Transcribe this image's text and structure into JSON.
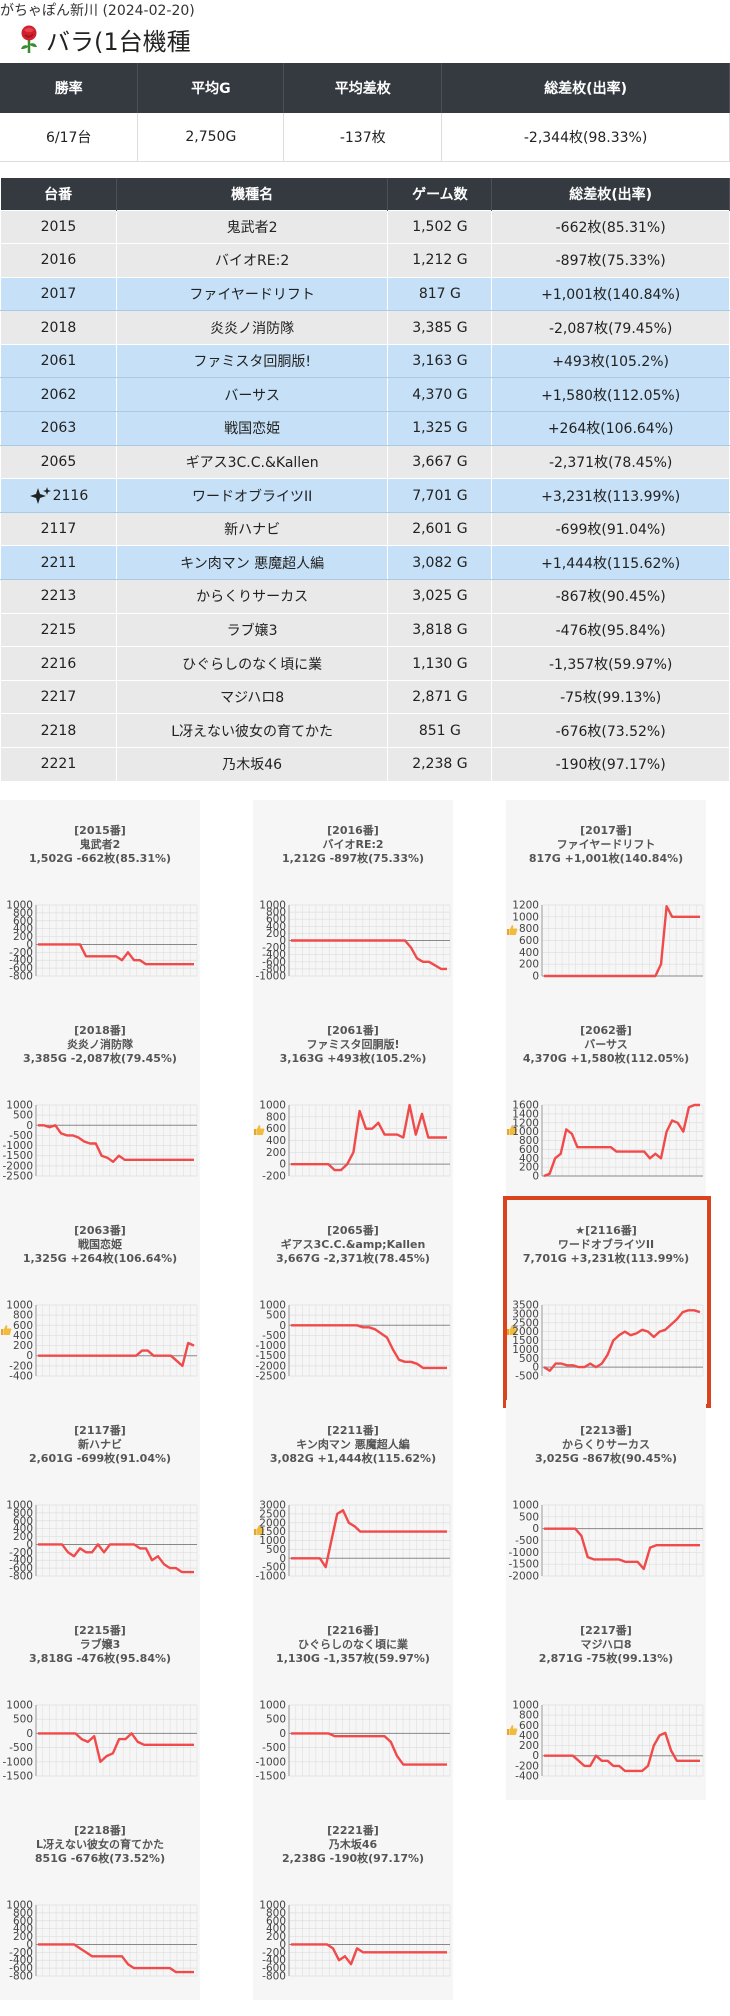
{
  "header": {
    "breadcrumb": "がちゃぽん新川 (2024-02-20)",
    "title": "バラ(1台機種"
  },
  "summary": {
    "headers": [
      "勝率",
      "平均G",
      "平均差枚",
      "総差枚(出率)"
    ],
    "values": [
      "6/17台",
      "2,750G",
      "-137枚",
      "-2,344枚(98.33%)"
    ]
  },
  "table": {
    "headers": [
      "台番",
      "機種名",
      "ゲーム数",
      "総差枚(出率)"
    ],
    "rows": [
      {
        "no": "2015",
        "name": "鬼武者2",
        "games": "1,502 G",
        "diff": "-662枚(85.31%)",
        "win": false
      },
      {
        "no": "2016",
        "name": "バイオRE:2",
        "games": "1,212 G",
        "diff": "-897枚(75.33%)",
        "win": false
      },
      {
        "no": "2017",
        "name": "ファイヤードリフト",
        "games": "817 G",
        "diff": "+1,001枚(140.84%)",
        "win": true
      },
      {
        "no": "2018",
        "name": "炎炎ノ消防隊",
        "games": "3,385 G",
        "diff": "-2,087枚(79.45%)",
        "win": false
      },
      {
        "no": "2061",
        "name": "ファミスタ回胴版!",
        "games": "3,163 G",
        "diff": "+493枚(105.2%)",
        "win": true
      },
      {
        "no": "2062",
        "name": "バーサス",
        "games": "4,370 G",
        "diff": "+1,580枚(112.05%)",
        "win": true
      },
      {
        "no": "2063",
        "name": "戦国恋姫",
        "games": "1,325 G",
        "diff": "+264枚(106.64%)",
        "win": true
      },
      {
        "no": "2065",
        "name": "ギアス3C.C.&Kallen",
        "games": "3,667 G",
        "diff": "-2,371枚(78.45%)",
        "win": false
      },
      {
        "no": "2116",
        "name": "ワードオブライツII",
        "games": "7,701 G",
        "diff": "+3,231枚(113.99%)",
        "win": true,
        "star": true
      },
      {
        "no": "2117",
        "name": "新ハナビ",
        "games": "2,601 G",
        "diff": "-699枚(91.04%)",
        "win": false
      },
      {
        "no": "2211",
        "name": "キン肉マン 悪魔超人編",
        "games": "3,082 G",
        "diff": "+1,444枚(115.62%)",
        "win": true
      },
      {
        "no": "2213",
        "name": "からくりサーカス",
        "games": "3,025 G",
        "diff": "-867枚(90.45%)",
        "win": false
      },
      {
        "no": "2215",
        "name": "ラブ嬢3",
        "games": "3,818 G",
        "diff": "-476枚(95.84%)",
        "win": false
      },
      {
        "no": "2216",
        "name": "ひぐらしのなく頃に業",
        "games": "1,130 G",
        "diff": "-1,357枚(59.97%)",
        "win": false
      },
      {
        "no": "2217",
        "name": "マジハロ8",
        "games": "2,871 G",
        "diff": "-75枚(99.13%)",
        "win": false
      },
      {
        "no": "2218",
        "name": "L冴えない彼女の育てかた",
        "games": "851 G",
        "diff": "-676枚(73.52%)",
        "win": false
      },
      {
        "no": "2221",
        "name": "乃木坂46",
        "games": "2,238 G",
        "diff": "-190枚(97.17%)",
        "win": false
      }
    ]
  },
  "charts": [
    {
      "label": "[2015番]",
      "name": "鬼武者2",
      "stats": "1,502G -662枚(85.31%)",
      "thumb": false,
      "ticks": [
        1000,
        800,
        600,
        400,
        200,
        0,
        -200,
        -400,
        -600,
        -800
      ],
      "ymin": -800,
      "ymax": 1000,
      "values": [
        0,
        0,
        0,
        0,
        0,
        0,
        0,
        0,
        -300,
        -300,
        -300,
        -300,
        -300,
        -300,
        -400,
        -200,
        -400,
        -400,
        -500,
        -500,
        -500,
        -500,
        -500,
        -500,
        -500,
        -500,
        -500
      ]
    },
    {
      "label": "[2016番]",
      "name": "バイオRE:2",
      "stats": "1,212G -897枚(75.33%)",
      "thumb": false,
      "ticks": [
        1000,
        800,
        600,
        400,
        200,
        0,
        -200,
        -400,
        -600,
        -800,
        -1000
      ],
      "ymin": -1000,
      "ymax": 1000,
      "values": [
        0,
        0,
        0,
        0,
        0,
        0,
        0,
        0,
        0,
        0,
        0,
        0,
        0,
        0,
        0,
        0,
        0,
        0,
        0,
        0,
        -200,
        -500,
        -600,
        -600,
        -700,
        -800,
        -800
      ]
    },
    {
      "label": "[2017番]",
      "name": "ファイヤードリフト",
      "stats": "817G +1,001枚(140.84%)",
      "thumb": true,
      "ticks": [
        1200,
        1000,
        800,
        600,
        400,
        200,
        0
      ],
      "ymin": 0,
      "ymax": 1200,
      "values": [
        0,
        0,
        0,
        0,
        0,
        0,
        0,
        0,
        0,
        0,
        0,
        0,
        0,
        0,
        0,
        0,
        0,
        0,
        0,
        0,
        0,
        200,
        1180,
        1000,
        1000,
        1000,
        1000,
        1000,
        1000
      ]
    },
    {
      "label": "[2018番]",
      "name": "炎炎ノ消防隊",
      "stats": "3,385G -2,087枚(79.45%)",
      "thumb": false,
      "ticks": [
        1000,
        500,
        0,
        -500,
        -1000,
        -1500,
        -2000,
        -2500
      ],
      "ymin": -2500,
      "ymax": 1000,
      "values": [
        0,
        0,
        -100,
        0,
        -400,
        -500,
        -500,
        -600,
        -800,
        -900,
        -900,
        -1500,
        -1600,
        -1800,
        -1500,
        -1700,
        -1700,
        -1700,
        -1700,
        -1700,
        -1700,
        -1700,
        -1700,
        -1700,
        -1700,
        -1700,
        -1700,
        -1700
      ]
    },
    {
      "label": "[2061番]",
      "name": "ファミスタ回胴版!",
      "stats": "3,163G +493枚(105.2%)",
      "thumb": true,
      "ticks": [
        1000,
        800,
        600,
        400,
        200,
        0,
        -200
      ],
      "ymin": -200,
      "ymax": 1000,
      "values": [
        0,
        0,
        0,
        0,
        0,
        0,
        0,
        -100,
        -100,
        0,
        200,
        900,
        600,
        600,
        700,
        500,
        500,
        500,
        450,
        1000,
        500,
        850,
        450,
        450,
        450,
        450
      ]
    },
    {
      "label": "[2062番]",
      "name": "バーサス",
      "stats": "4,370G +1,580枚(112.05%)",
      "thumb": true,
      "ticks": [
        1600,
        1400,
        1200,
        1000,
        800,
        600,
        400,
        200,
        0
      ],
      "ymin": 0,
      "ymax": 1600,
      "values": [
        0,
        50,
        400,
        500,
        1050,
        950,
        650,
        650,
        650,
        650,
        650,
        650,
        650,
        550,
        550,
        550,
        550,
        550,
        550,
        400,
        500,
        400,
        1000,
        1250,
        1200,
        1000,
        1550,
        1600,
        1600
      ]
    },
    {
      "label": "[2063番]",
      "name": "戦国恋姫",
      "stats": "1,325G +264枚(106.64%)",
      "thumb": true,
      "ticks": [
        1000,
        800,
        600,
        400,
        200,
        0,
        -200,
        -400
      ],
      "ymin": -400,
      "ymax": 1000,
      "values": [
        0,
        0,
        0,
        0,
        0,
        0,
        0,
        0,
        0,
        0,
        0,
        0,
        0,
        0,
        0,
        0,
        0,
        0,
        100,
        100,
        0,
        0,
        0,
        0,
        -100,
        -200,
        250,
        200
      ]
    },
    {
      "label": "[2065番]",
      "name": "ギアス3C.C.&amp;Kallen",
      "stats": "3,667G -2,371枚(78.45%)",
      "thumb": false,
      "ticks": [
        1000,
        500,
        0,
        -500,
        -1000,
        -1500,
        -2000,
        -2500
      ],
      "ymin": -2500,
      "ymax": 1000,
      "values": [
        0,
        0,
        0,
        0,
        0,
        0,
        0,
        0,
        0,
        0,
        0,
        0,
        -100,
        -100,
        -200,
        -400,
        -600,
        -1200,
        -1700,
        -1800,
        -1800,
        -1900,
        -2100,
        -2100,
        -2100,
        -2100,
        -2100
      ]
    },
    {
      "label": "★[2116番]",
      "name": "ワードオブライツII",
      "stats": "7,701G +3,231枚(113.99%)",
      "thumb": true,
      "ticks": [
        3500,
        3000,
        2500,
        2000,
        1500,
        1000,
        500,
        0,
        -500
      ],
      "ymin": -500,
      "ymax": 3500,
      "values": [
        0,
        -200,
        200,
        200,
        100,
        100,
        0,
        0,
        200,
        0,
        200,
        700,
        1500,
        1800,
        2000,
        1800,
        1900,
        2100,
        2000,
        1700,
        2000,
        2100,
        2400,
        2700,
        3100,
        3200,
        3200,
        3100
      ]
    },
    {
      "label": "[2117番]",
      "name": "新ハナビ",
      "stats": "2,601G -699枚(91.04%)",
      "thumb": false,
      "ticks": [
        1000,
        800,
        600,
        400,
        200,
        0,
        -200,
        -400,
        -600,
        -800
      ],
      "ymin": -800,
      "ymax": 1000,
      "values": [
        0,
        0,
        0,
        0,
        0,
        -200,
        -300,
        -100,
        -200,
        -200,
        0,
        -200,
        0,
        0,
        0,
        0,
        0,
        -100,
        -100,
        -400,
        -300,
        -500,
        -600,
        -600,
        -700,
        -700,
        -700
      ]
    },
    {
      "label": "[2211番]",
      "name": "キン肉マン 悪魔超人編",
      "stats": "3,082G +1,444枚(115.62%)",
      "thumb": true,
      "ticks": [
        3000,
        2500,
        2000,
        1500,
        1000,
        500,
        0,
        -500,
        -1000
      ],
      "ymin": -1000,
      "ymax": 3000,
      "values": [
        0,
        0,
        0,
        0,
        0,
        0,
        -500,
        1000,
        2500,
        2700,
        2000,
        1800,
        1500,
        1500,
        1500,
        1500,
        1500,
        1500,
        1500,
        1500,
        1500,
        1500,
        1500,
        1500,
        1500,
        1500,
        1500,
        1500
      ]
    },
    {
      "label": "[2213番]",
      "name": "からくりサーカス",
      "stats": "3,025G -867枚(90.45%)",
      "thumb": false,
      "ticks": [
        1000,
        500,
        0,
        -500,
        -1000,
        -1500,
        -2000
      ],
      "ymin": -2000,
      "ymax": 1000,
      "values": [
        0,
        0,
        0,
        0,
        0,
        0,
        -300,
        -1200,
        -1300,
        -1300,
        -1300,
        -1300,
        -1300,
        -1400,
        -1400,
        -1400,
        -1700,
        -800,
        -700,
        -700,
        -700,
        -700,
        -700,
        -700,
        -700,
        -700
      ]
    },
    {
      "label": "[2215番]",
      "name": "ラブ嬢3",
      "stats": "3,818G -476枚(95.84%)",
      "thumb": false,
      "ticks": [
        1000,
        500,
        0,
        -500,
        -1000,
        -1500
      ],
      "ymin": -1500,
      "ymax": 1000,
      "values": [
        0,
        0,
        0,
        0,
        0,
        0,
        0,
        -200,
        -300,
        -100,
        -1000,
        -800,
        -700,
        -200,
        -200,
        0,
        -300,
        -400,
        -400,
        -400,
        -400,
        -400,
        -400,
        -400,
        -400,
        -400
      ]
    },
    {
      "label": "[2216番]",
      "name": "ひぐらしのなく頃に業",
      "stats": "1,130G -1,357枚(59.97%)",
      "thumb": false,
      "ticks": [
        1000,
        500,
        0,
        -500,
        -1000,
        -1500
      ],
      "ymin": -1500,
      "ymax": 1000,
      "values": [
        0,
        0,
        0,
        0,
        0,
        0,
        0,
        -100,
        -100,
        -100,
        -100,
        -100,
        -100,
        -100,
        -100,
        -100,
        -300,
        -800,
        -1100,
        -1100,
        -1100,
        -1100,
        -1100,
        -1100,
        -1100,
        -1100
      ]
    },
    {
      "label": "[2217番]",
      "name": "マジハロ8",
      "stats": "2,871G -75枚(99.13%)",
      "thumb": true,
      "ticks": [
        1000,
        800,
        600,
        400,
        200,
        0,
        -200,
        -400
      ],
      "ymin": -400,
      "ymax": 1000,
      "values": [
        0,
        0,
        0,
        0,
        0,
        0,
        -100,
        -200,
        -200,
        0,
        -100,
        -100,
        -200,
        -200,
        -300,
        -300,
        -300,
        -300,
        -200,
        200,
        400,
        450,
        100,
        -100,
        -100,
        -100,
        -100,
        -100
      ]
    },
    {
      "label": "[2218番]",
      "name": "L冴えない彼女の育てかた",
      "stats": "851G -676枚(73.52%)",
      "thumb": false,
      "ticks": [
        1000,
        800,
        600,
        400,
        200,
        0,
        -200,
        -400,
        -600,
        -800
      ],
      "ymin": -800,
      "ymax": 1000,
      "values": [
        0,
        0,
        0,
        0,
        0,
        0,
        0,
        -100,
        -200,
        -300,
        -300,
        -300,
        -300,
        -300,
        -300,
        -500,
        -600,
        -600,
        -600,
        -600,
        -600,
        -600,
        -600,
        -700,
        -700,
        -700,
        -700
      ]
    },
    {
      "label": "[2221番]",
      "name": "乃木坂46",
      "stats": "2,238G -190枚(97.17%)",
      "thumb": false,
      "ticks": [
        1000,
        800,
        600,
        400,
        200,
        0,
        -200,
        -400,
        -600,
        -800
      ],
      "ymin": -800,
      "ymax": 1000,
      "values": [
        0,
        0,
        0,
        0,
        0,
        0,
        0,
        -100,
        -400,
        -300,
        -500,
        -100,
        -200,
        -200,
        -200,
        -200,
        -200,
        -200,
        -200,
        -200,
        -200,
        -200,
        -200,
        -200,
        -200,
        -200,
        -200
      ]
    }
  ],
  "colors": {
    "win_row": "#c6e1f7",
    "lose_row": "#e9e9e9",
    "header_bg": "#343a40",
    "line": "#f04a4a",
    "highlight": "#d9441d"
  },
  "icons": {
    "rose": "rose-icon",
    "thumb": "thumbs-up-icon",
    "sparkle": "sparkle-icon"
  }
}
